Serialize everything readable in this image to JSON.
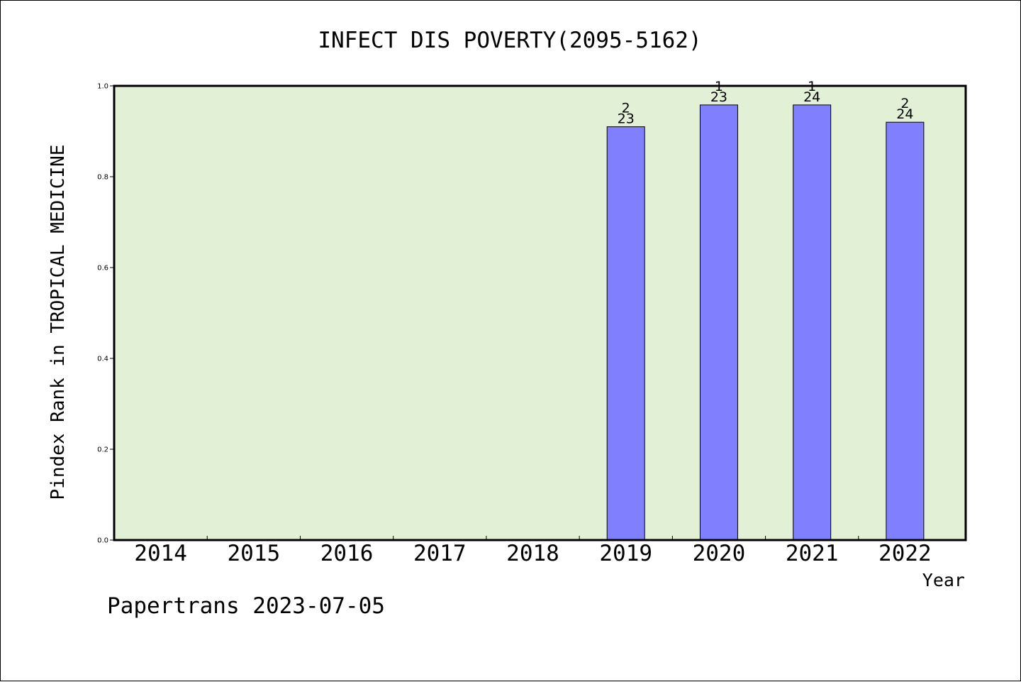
{
  "chart_data": {
    "type": "bar",
    "title": "INFECT DIS POVERTY(2095-5162)",
    "xlabel": "Year",
    "ylabel": "Pindex Rank in TROPICAL MEDICINE",
    "categories": [
      "2014",
      "2015",
      "2016",
      "2017",
      "2018",
      "2019",
      "2020",
      "2021",
      "2022"
    ],
    "values": [
      null,
      null,
      null,
      null,
      null,
      0.91,
      0.958,
      0.958,
      0.92
    ],
    "bar_labels": [
      {
        "rank": "",
        "total": ""
      },
      {
        "rank": "",
        "total": ""
      },
      {
        "rank": "",
        "total": ""
      },
      {
        "rank": "",
        "total": ""
      },
      {
        "rank": "",
        "total": ""
      },
      {
        "rank": "2",
        "total": "23"
      },
      {
        "rank": "1",
        "total": "23"
      },
      {
        "rank": "1",
        "total": "24"
      },
      {
        "rank": "2",
        "total": "24"
      }
    ],
    "ylim": [
      0,
      1.0
    ],
    "yticks": [
      "0.0",
      "0.2",
      "0.4",
      "0.6",
      "0.8",
      "1.0"
    ],
    "grid": false,
    "colors": {
      "plot_background": "#e2f0d6",
      "bar_fill": "#8080ff",
      "bar_stroke": "#000000"
    }
  },
  "footer": {
    "watermark": "Papertrans 2023-07-05"
  }
}
